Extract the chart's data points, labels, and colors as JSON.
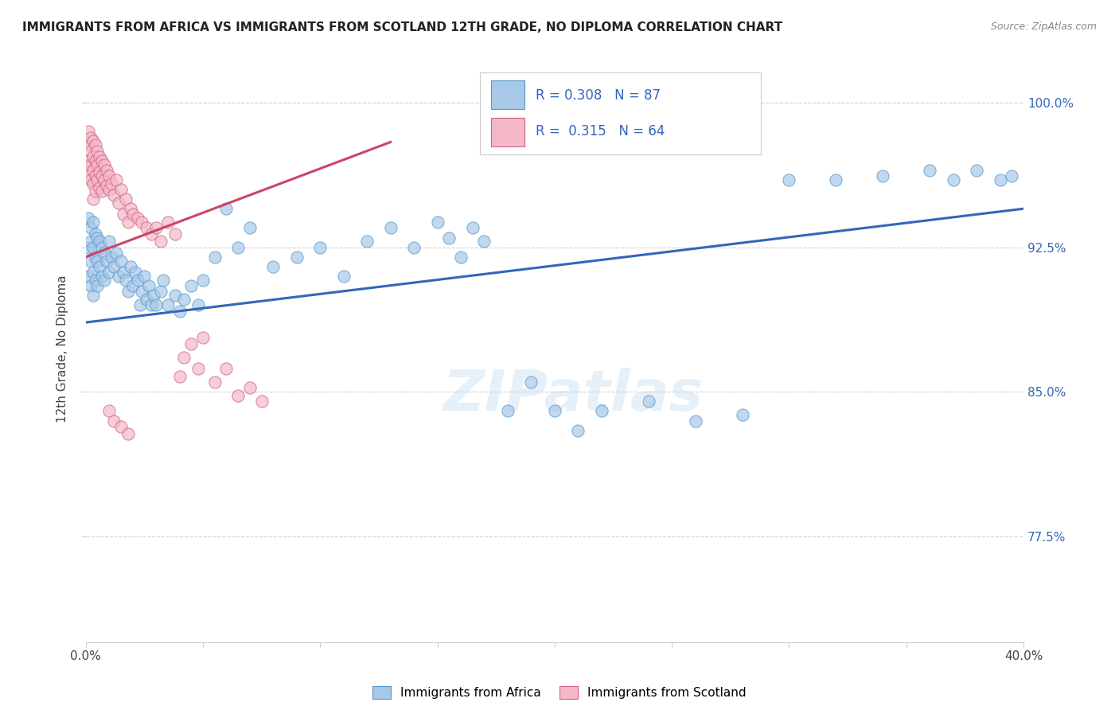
{
  "title": "IMMIGRANTS FROM AFRICA VS IMMIGRANTS FROM SCOTLAND 12TH GRADE, NO DIPLOMA CORRELATION CHART",
  "source": "Source: ZipAtlas.com",
  "ylabel_label": "12th Grade, No Diploma",
  "ytick_labels": [
    "100.0%",
    "92.5%",
    "85.0%",
    "77.5%"
  ],
  "ytick_values": [
    1.0,
    0.925,
    0.85,
    0.775
  ],
  "xlim": [
    0.0,
    0.4
  ],
  "ylim": [
    0.72,
    1.025
  ],
  "legend_r1": "0.308",
  "legend_n1": "87",
  "legend_r2": "0.315",
  "legend_n2": "64",
  "color_blue": "#a8c8e8",
  "color_blue_edge": "#5599cc",
  "color_pink": "#f5b8c8",
  "color_pink_edge": "#d06080",
  "color_blue_line": "#3366bb",
  "color_pink_line": "#cc4466",
  "watermark": "ZIPatlas",
  "africa_x": [
    0.001,
    0.001,
    0.001,
    0.002,
    0.002,
    0.002,
    0.002,
    0.003,
    0.003,
    0.003,
    0.003,
    0.004,
    0.004,
    0.004,
    0.005,
    0.005,
    0.005,
    0.006,
    0.006,
    0.007,
    0.007,
    0.008,
    0.008,
    0.009,
    0.01,
    0.01,
    0.011,
    0.012,
    0.013,
    0.014,
    0.015,
    0.016,
    0.017,
    0.018,
    0.019,
    0.02,
    0.021,
    0.022,
    0.023,
    0.024,
    0.025,
    0.026,
    0.027,
    0.028,
    0.029,
    0.03,
    0.032,
    0.033,
    0.035,
    0.038,
    0.04,
    0.042,
    0.045,
    0.048,
    0.05,
    0.055,
    0.06,
    0.065,
    0.07,
    0.08,
    0.09,
    0.1,
    0.11,
    0.12,
    0.13,
    0.14,
    0.15,
    0.155,
    0.16,
    0.165,
    0.17,
    0.18,
    0.19,
    0.2,
    0.21,
    0.22,
    0.24,
    0.26,
    0.28,
    0.3,
    0.32,
    0.34,
    0.36,
    0.37,
    0.38,
    0.39,
    0.395
  ],
  "africa_y": [
    0.94,
    0.925,
    0.91,
    0.935,
    0.928,
    0.918,
    0.905,
    0.938,
    0.925,
    0.912,
    0.9,
    0.932,
    0.92,
    0.908,
    0.93,
    0.918,
    0.905,
    0.928,
    0.915,
    0.925,
    0.91,
    0.922,
    0.908,
    0.918,
    0.928,
    0.912,
    0.92,
    0.915,
    0.922,
    0.91,
    0.918,
    0.912,
    0.908,
    0.902,
    0.915,
    0.905,
    0.912,
    0.908,
    0.895,
    0.902,
    0.91,
    0.898,
    0.905,
    0.895,
    0.9,
    0.895,
    0.902,
    0.908,
    0.895,
    0.9,
    0.892,
    0.898,
    0.905,
    0.895,
    0.908,
    0.92,
    0.945,
    0.925,
    0.935,
    0.915,
    0.92,
    0.925,
    0.91,
    0.928,
    0.935,
    0.925,
    0.938,
    0.93,
    0.92,
    0.935,
    0.928,
    0.84,
    0.855,
    0.84,
    0.83,
    0.84,
    0.845,
    0.835,
    0.838,
    0.96,
    0.96,
    0.962,
    0.965,
    0.96,
    0.965,
    0.96,
    0.962
  ],
  "scotland_x": [
    0.001,
    0.001,
    0.001,
    0.001,
    0.002,
    0.002,
    0.002,
    0.002,
    0.003,
    0.003,
    0.003,
    0.003,
    0.003,
    0.004,
    0.004,
    0.004,
    0.004,
    0.005,
    0.005,
    0.005,
    0.006,
    0.006,
    0.006,
    0.007,
    0.007,
    0.007,
    0.008,
    0.008,
    0.009,
    0.009,
    0.01,
    0.01,
    0.011,
    0.012,
    0.013,
    0.014,
    0.015,
    0.016,
    0.017,
    0.018,
    0.019,
    0.02,
    0.022,
    0.024,
    0.026,
    0.028,
    0.03,
    0.032,
    0.035,
    0.038,
    0.04,
    0.042,
    0.045,
    0.048,
    0.05,
    0.055,
    0.06,
    0.065,
    0.07,
    0.075,
    0.01,
    0.012,
    0.015,
    0.018
  ],
  "scotland_y": [
    0.985,
    0.978,
    0.97,
    0.962,
    0.982,
    0.975,
    0.968,
    0.96,
    0.98,
    0.972,
    0.965,
    0.958,
    0.95,
    0.978,
    0.97,
    0.962,
    0.954,
    0.975,
    0.968,
    0.96,
    0.972,
    0.964,
    0.956,
    0.97,
    0.962,
    0.954,
    0.968,
    0.96,
    0.965,
    0.957,
    0.962,
    0.955,
    0.958,
    0.952,
    0.96,
    0.948,
    0.955,
    0.942,
    0.95,
    0.938,
    0.945,
    0.942,
    0.94,
    0.938,
    0.935,
    0.932,
    0.935,
    0.928,
    0.938,
    0.932,
    0.858,
    0.868,
    0.875,
    0.862,
    0.878,
    0.855,
    0.862,
    0.848,
    0.852,
    0.845,
    0.84,
    0.835,
    0.832,
    0.828
  ],
  "dot_size": 120
}
